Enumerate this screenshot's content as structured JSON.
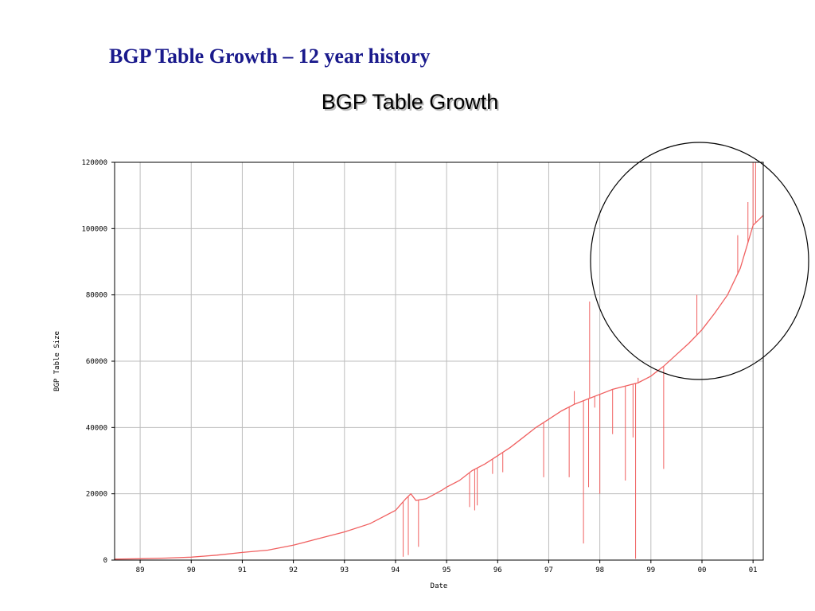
{
  "slide": {
    "title": "BGP Table Growth – 12 year history"
  },
  "chart_data": {
    "type": "line",
    "title": "BGP Table Growth",
    "xlabel": "Date",
    "ylabel": "BGP Table Size",
    "x_ticks": [
      "89",
      "90",
      "91",
      "92",
      "93",
      "94",
      "95",
      "96",
      "97",
      "98",
      "99",
      "00",
      "01"
    ],
    "y_ticks": [
      0,
      20000,
      40000,
      60000,
      80000,
      100000,
      120000
    ],
    "xlim": [
      1988.5,
      2001.2
    ],
    "ylim": [
      0,
      120000
    ],
    "grid": true,
    "series": [
      {
        "color": "#f06060",
        "x": [
          1988.5,
          1989.0,
          1989.5,
          1990.0,
          1990.5,
          1991.0,
          1991.5,
          1992.0,
          1992.5,
          1993.0,
          1993.5,
          1994.0,
          1994.2,
          1994.3,
          1994.4,
          1994.6,
          1994.9,
          1995.0,
          1995.25,
          1995.5,
          1995.75,
          1996.0,
          1996.25,
          1996.5,
          1996.75,
          1997.0,
          1997.25,
          1997.5,
          1997.75,
          1998.0,
          1998.25,
          1998.5,
          1998.75,
          1999.0,
          1999.25,
          1999.5,
          1999.75,
          2000.0,
          2000.25,
          2000.5,
          2000.75,
          2001.0,
          2001.2
        ],
        "y": [
          300,
          400,
          600,
          900,
          1500,
          2300,
          3000,
          4500,
          6500,
          8500,
          11000,
          15000,
          18500,
          20000,
          18000,
          18500,
          21000,
          22000,
          24000,
          27000,
          29000,
          31500,
          34000,
          37000,
          40000,
          42500,
          45000,
          47000,
          48500,
          50000,
          51500,
          52500,
          53500,
          55500,
          58500,
          62000,
          65500,
          69500,
          74500,
          80000,
          88000,
          101000,
          104000
        ]
      }
    ],
    "spikes": [
      {
        "x": 1994.15,
        "y": 1000
      },
      {
        "x": 1994.25,
        "y": 1500
      },
      {
        "x": 1994.45,
        "y": 4000
      },
      {
        "x": 1995.45,
        "y": 16000
      },
      {
        "x": 1995.55,
        "y": 15000
      },
      {
        "x": 1995.6,
        "y": 16500
      },
      {
        "x": 1995.9,
        "y": 26000
      },
      {
        "x": 1996.1,
        "y": 26500
      },
      {
        "x": 1996.9,
        "y": 25000
      },
      {
        "x": 1997.4,
        "y": 25000
      },
      {
        "x": 1997.5,
        "y": 51000
      },
      {
        "x": 1997.68,
        "y": 5000
      },
      {
        "x": 1997.78,
        "y": 22000
      },
      {
        "x": 1997.8,
        "y": 78000
      },
      {
        "x": 1997.9,
        "y": 46000
      },
      {
        "x": 1998.0,
        "y": 20000
      },
      {
        "x": 1998.25,
        "y": 38000
      },
      {
        "x": 1998.5,
        "y": 24000
      },
      {
        "x": 1998.65,
        "y": 37000
      },
      {
        "x": 1998.7,
        "y": 400
      },
      {
        "x": 1998.75,
        "y": 55000
      },
      {
        "x": 1999.25,
        "y": 27500
      },
      {
        "x": 1999.9,
        "y": 80000
      },
      {
        "x": 2000.7,
        "y": 98000
      },
      {
        "x": 2000.9,
        "y": 108000
      },
      {
        "x": 2001.0,
        "y": 120000
      },
      {
        "x": 2001.05,
        "y": 120000
      }
    ]
  }
}
